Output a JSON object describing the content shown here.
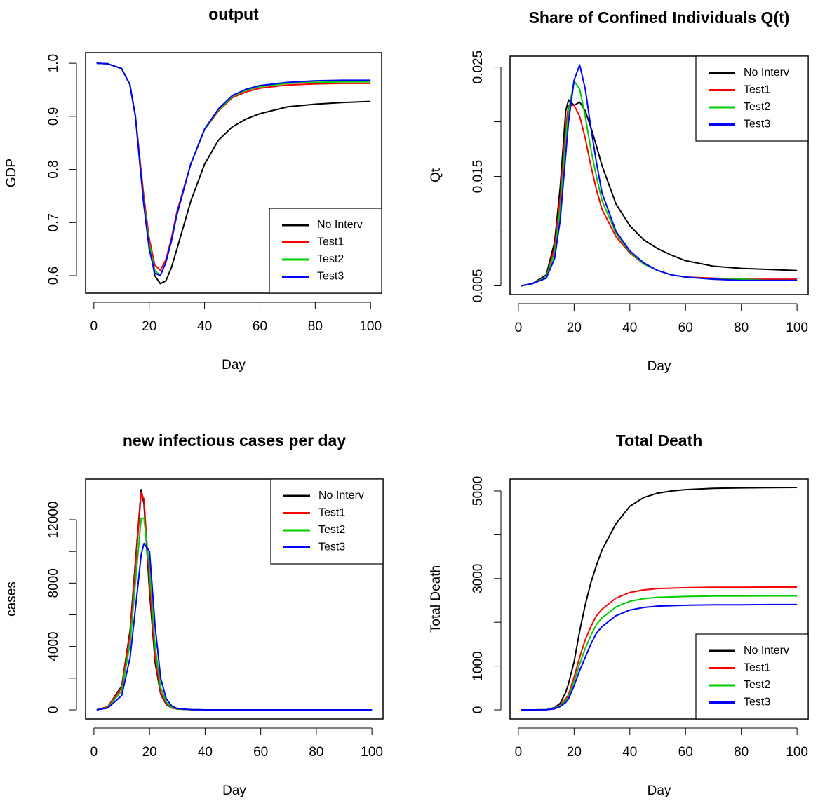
{
  "chart_data": [
    {
      "type": "line",
      "title": "output",
      "x_label": "Day",
      "y_label": "GDP",
      "x": [
        1,
        5,
        10,
        13,
        15,
        17,
        18,
        20,
        22,
        24,
        26,
        28,
        30,
        35,
        40,
        45,
        50,
        55,
        60,
        70,
        80,
        90,
        100
      ],
      "xlim": [
        -3,
        104
      ],
      "xticks": [
        0,
        20,
        40,
        60,
        80,
        100
      ],
      "ylim": [
        0.567,
        1.02
      ],
      "yticks": [
        0.6,
        0.7,
        0.8,
        0.9,
        {
          "value": 1,
          "label": "1.0"
        }
      ],
      "legend": "bottomright",
      "series": [
        {
          "name": "No Interv",
          "color": "#000000",
          "values": [
            1,
            0.999,
            0.99,
            0.96,
            0.9,
            0.8,
            0.75,
            0.66,
            0.6,
            0.585,
            0.59,
            0.615,
            0.65,
            0.74,
            0.81,
            0.855,
            0.88,
            0.895,
            0.905,
            0.918,
            0.923,
            0.926,
            0.928
          ]
        },
        {
          "name": "Test1",
          "color": "#ff0000",
          "values": [
            1,
            0.999,
            0.99,
            0.96,
            0.9,
            0.8,
            0.75,
            0.67,
            0.62,
            0.61,
            0.63,
            0.67,
            0.72,
            0.81,
            0.875,
            0.91,
            0.935,
            0.946,
            0.953,
            0.959,
            0.961,
            0.962,
            0.962
          ]
        },
        {
          "name": "Test2",
          "color": "#00cd00",
          "values": [
            1,
            0.999,
            0.99,
            0.96,
            0.9,
            0.79,
            0.74,
            0.66,
            0.61,
            0.6,
            0.625,
            0.665,
            0.715,
            0.81,
            0.875,
            0.912,
            0.937,
            0.949,
            0.956,
            0.962,
            0.964,
            0.965,
            0.965
          ]
        },
        {
          "name": "Test3",
          "color": "#0000ff",
          "values": [
            1,
            0.999,
            0.99,
            0.96,
            0.9,
            0.79,
            0.735,
            0.65,
            0.605,
            0.6,
            0.625,
            0.665,
            0.715,
            0.81,
            0.876,
            0.914,
            0.939,
            0.951,
            0.958,
            0.964,
            0.967,
            0.968,
            0.968
          ]
        }
      ]
    },
    {
      "type": "line",
      "title": "Share of Confined Individuals Q(t)",
      "x_label": "Day",
      "y_label": "Qt",
      "x": [
        1,
        5,
        10,
        13,
        15,
        17,
        18,
        20,
        22,
        24,
        26,
        28,
        30,
        35,
        40,
        45,
        50,
        55,
        60,
        70,
        80,
        90,
        100
      ],
      "xlim": [
        -3,
        104
      ],
      "xticks": [
        0,
        20,
        40,
        60,
        80,
        100
      ],
      "ylim": [
        0.0042,
        0.026
      ],
      "yticks": [
        0.005,
        0.015,
        0.025
      ],
      "yticks_unlabeled": [
        0.01,
        0.02
      ],
      "legend": "topright",
      "series": [
        {
          "name": "No Interv",
          "color": "#000000",
          "values": [
            0.005,
            0.0052,
            0.006,
            0.009,
            0.014,
            0.021,
            0.022,
            0.0215,
            0.0218,
            0.021,
            0.0195,
            0.0178,
            0.016,
            0.0125,
            0.0105,
            0.0092,
            0.0084,
            0.0078,
            0.0073,
            0.0068,
            0.0066,
            0.0065,
            0.0064
          ]
        },
        {
          "name": "Test1",
          "color": "#ff0000",
          "values": [
            0.005,
            0.0052,
            0.0058,
            0.0085,
            0.013,
            0.0195,
            0.0215,
            0.0215,
            0.0205,
            0.0185,
            0.016,
            0.0138,
            0.012,
            0.0095,
            0.008,
            0.007,
            0.0064,
            0.006,
            0.0058,
            0.0057,
            0.0056,
            0.0056,
            0.0056
          ]
        },
        {
          "name": "Test2",
          "color": "#00cd00",
          "values": [
            0.005,
            0.0052,
            0.0058,
            0.008,
            0.012,
            0.0185,
            0.021,
            0.0237,
            0.023,
            0.0205,
            0.0175,
            0.015,
            0.0128,
            0.0098,
            0.0081,
            0.007,
            0.0064,
            0.006,
            0.0058,
            0.0056,
            0.0056,
            0.0055,
            0.0055
          ]
        },
        {
          "name": "Test3",
          "color": "#0000ff",
          "values": [
            0.005,
            0.0052,
            0.0057,
            0.0075,
            0.011,
            0.017,
            0.02,
            0.0238,
            0.0252,
            0.023,
            0.0195,
            0.0163,
            0.0135,
            0.01,
            0.0082,
            0.0071,
            0.0064,
            0.006,
            0.0058,
            0.0056,
            0.0055,
            0.0055,
            0.0055
          ]
        }
      ]
    },
    {
      "type": "line",
      "title": "new infectious cases per day",
      "x_label": "Day",
      "y_label": "cases",
      "x": [
        1,
        5,
        10,
        13,
        15,
        17,
        18,
        20,
        22,
        24,
        26,
        28,
        30,
        35,
        40,
        45,
        50,
        55,
        60,
        70,
        80,
        90,
        100
      ],
      "xlim": [
        -3,
        104
      ],
      "xticks": [
        0,
        20,
        40,
        60,
        80,
        100
      ],
      "ylim": [
        -576,
        14569
      ],
      "yticks": [
        0,
        4000,
        8000,
        12000
      ],
      "yticks_unlabeled": [
        2000,
        6000,
        10000
      ],
      "legend": "topright",
      "series": [
        {
          "name": "No Interv",
          "color": "#000000",
          "values": [
            0,
            200,
            1500,
            5000,
            9500,
            13900,
            13000,
            7500,
            3000,
            1000,
            350,
            120,
            50,
            10,
            0,
            0,
            0,
            0,
            0,
            0,
            0,
            0,
            0
          ]
        },
        {
          "name": "Test1",
          "color": "#ff0000",
          "values": [
            0,
            200,
            1400,
            4800,
            9200,
            13700,
            13300,
            8000,
            3300,
            1100,
            400,
            130,
            50,
            10,
            0,
            0,
            0,
            0,
            0,
            0,
            0,
            0,
            0
          ]
        },
        {
          "name": "Test2",
          "color": "#00cd00",
          "values": [
            0,
            150,
            1200,
            4200,
            8200,
            12100,
            12100,
            9000,
            4000,
            1400,
            500,
            170,
            60,
            10,
            0,
            0,
            0,
            0,
            0,
            0,
            0,
            0,
            0
          ]
        },
        {
          "name": "Test3",
          "color": "#0000ff",
          "values": [
            0,
            120,
            900,
            3300,
            6500,
            9800,
            10500,
            10000,
            5300,
            2000,
            700,
            250,
            80,
            15,
            0,
            0,
            0,
            0,
            0,
            0,
            0,
            0,
            0
          ]
        }
      ]
    },
    {
      "type": "line",
      "title": "Total Death",
      "x_label": "Day",
      "y_label": "Total Death",
      "x": [
        1,
        5,
        10,
        13,
        15,
        17,
        18,
        20,
        22,
        24,
        26,
        28,
        30,
        35,
        40,
        45,
        50,
        55,
        60,
        70,
        80,
        90,
        100
      ],
      "xlim": [
        -3,
        104
      ],
      "xticks": [
        0,
        20,
        40,
        60,
        80,
        100
      ],
      "ylim": [
        -208,
        5272
      ],
      "yticks": [
        0,
        1000,
        3000,
        5000
      ],
      "yticks_unlabeled": [
        2000,
        4000
      ],
      "legend": "bottomright",
      "series": [
        {
          "name": "No Interv",
          "color": "#000000",
          "values": [
            0,
            0,
            5,
            50,
            150,
            400,
            600,
            1100,
            1800,
            2400,
            2900,
            3300,
            3650,
            4250,
            4650,
            4850,
            4950,
            5000,
            5030,
            5060,
            5070,
            5075,
            5080
          ]
        },
        {
          "name": "Test1",
          "color": "#ff0000",
          "values": [
            0,
            0,
            5,
            40,
            110,
            250,
            350,
            750,
            1200,
            1600,
            1900,
            2150,
            2300,
            2550,
            2680,
            2740,
            2770,
            2780,
            2790,
            2800,
            2800,
            2805,
            2805
          ]
        },
        {
          "name": "Test2",
          "color": "#00cd00",
          "values": [
            0,
            0,
            4,
            35,
            95,
            210,
            300,
            650,
            1050,
            1400,
            1700,
            1950,
            2100,
            2350,
            2480,
            2540,
            2570,
            2580,
            2590,
            2600,
            2600,
            2605,
            2605
          ]
        },
        {
          "name": "Test3",
          "color": "#0000ff",
          "values": [
            0,
            0,
            3,
            25,
            75,
            170,
            250,
            550,
            900,
            1200,
            1500,
            1750,
            1900,
            2150,
            2280,
            2340,
            2370,
            2380,
            2390,
            2400,
            2400,
            2405,
            2405
          ]
        }
      ]
    }
  ]
}
